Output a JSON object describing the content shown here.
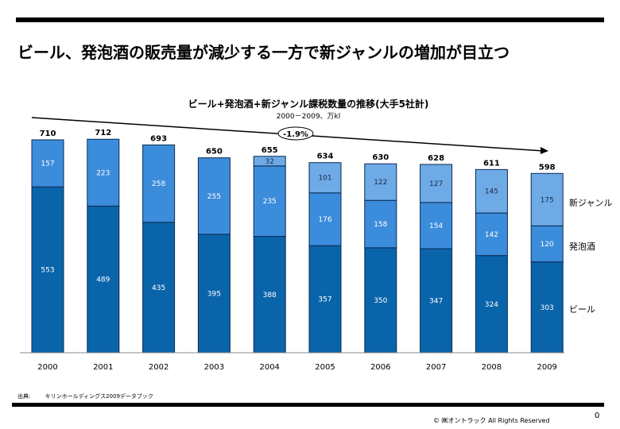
{
  "title": "ビール、発泡酒の販売量が減少する一方で新ジャンルの増加が目立つ",
  "chart_data": {
    "type": "bar",
    "stacked": true,
    "title": "ビール+発泡酒+新ジャンル課税数量の推移(大手5社計)",
    "subtitle": "2000－2009、万kl",
    "categories": [
      "2000",
      "2001",
      "2002",
      "2003",
      "2004",
      "2005",
      "2006",
      "2007",
      "2008",
      "2009"
    ],
    "series": [
      {
        "name": "ビール",
        "color": "#0A64AA",
        "values": [
          553,
          489,
          435,
          395,
          388,
          357,
          350,
          347,
          324,
          303
        ]
      },
      {
        "name": "発泡酒",
        "color": "#3C8CDC",
        "values": [
          157,
          223,
          258,
          255,
          235,
          176,
          158,
          154,
          142,
          120
        ]
      },
      {
        "name": "新ジャンル",
        "color": "#6EAAE6",
        "values": [
          null,
          null,
          null,
          null,
          32,
          101,
          122,
          127,
          145,
          175
        ]
      }
    ],
    "totals": [
      710,
      712,
      693,
      650,
      655,
      634,
      630,
      628,
      611,
      598
    ],
    "annotation": "-1.9%",
    "ylim": [
      0,
      712
    ],
    "grid": false,
    "legend": "right"
  },
  "source": {
    "label": "出典:",
    "text": "キリンホールディングス2009データブック"
  },
  "copyright": "© ㈱オントラック All Rights Reserved",
  "page_number": "0"
}
